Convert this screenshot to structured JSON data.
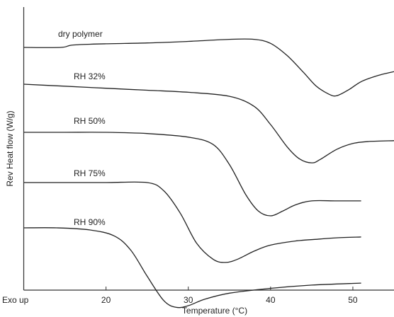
{
  "chart_data": {
    "type": "line",
    "xlabel": "Temperature (°C)",
    "ylabel": "Rev Heat flow (W/g)",
    "corner_label": "Exo up",
    "x_ticks": [
      20,
      30,
      40,
      50
    ],
    "xlim": [
      10,
      55
    ],
    "y_ticks": [],
    "grid": false,
    "series": [
      {
        "name": "dry polymer",
        "x": [
          10,
          14.5,
          16,
          20,
          25,
          30,
          35,
          38,
          40,
          42,
          44,
          45.5,
          47,
          48,
          49.5,
          51,
          53,
          55
        ],
        "y": [
          0.0,
          0.0,
          0.06,
          0.09,
          0.11,
          0.15,
          0.2,
          0.2,
          0.1,
          -0.2,
          -0.62,
          -0.95,
          -1.15,
          -1.2,
          -1.05,
          -0.85,
          -0.7,
          -0.6
        ]
      },
      {
        "name": "RH 32%",
        "x": [
          10,
          15,
          20,
          25,
          30,
          35,
          38,
          40,
          42,
          43.5,
          45,
          46,
          48,
          50,
          52,
          55
        ],
        "y": [
          0.0,
          -0.05,
          -0.1,
          -0.15,
          -0.2,
          -0.3,
          -0.55,
          -1.0,
          -1.55,
          -1.85,
          -1.95,
          -1.87,
          -1.62,
          -1.47,
          -1.42,
          -1.4
        ]
      },
      {
        "name": "RH 50%",
        "x": [
          10,
          15,
          20,
          25,
          30,
          33,
          35,
          37,
          38.5,
          40,
          41.5,
          43,
          45,
          48,
          51
        ],
        "y": [
          0.0,
          0.0,
          0.0,
          -0.03,
          -0.12,
          -0.3,
          -0.8,
          -1.55,
          -1.95,
          -2.07,
          -1.95,
          -1.8,
          -1.7,
          -1.7,
          -1.7
        ]
      },
      {
        "name": "RH 75%",
        "x": [
          10,
          15,
          20,
          25,
          27,
          29,
          31,
          33,
          34.5,
          36,
          38,
          40,
          43,
          46,
          48,
          51
        ],
        "y": [
          0.0,
          0.0,
          0.0,
          0.0,
          -0.2,
          -0.75,
          -1.5,
          -1.9,
          -1.98,
          -1.9,
          -1.7,
          -1.55,
          -1.45,
          -1.4,
          -1.37,
          -1.35
        ]
      },
      {
        "name": "RH 90%",
        "x": [
          10,
          14,
          18,
          21,
          23,
          25,
          27,
          28.5,
          30,
          32,
          35,
          40,
          45,
          51
        ],
        "y": [
          0.0,
          0.0,
          -0.05,
          -0.2,
          -0.55,
          -1.2,
          -1.8,
          -1.97,
          -1.93,
          -1.77,
          -1.62,
          -1.5,
          -1.42,
          -1.37
        ]
      }
    ]
  }
}
